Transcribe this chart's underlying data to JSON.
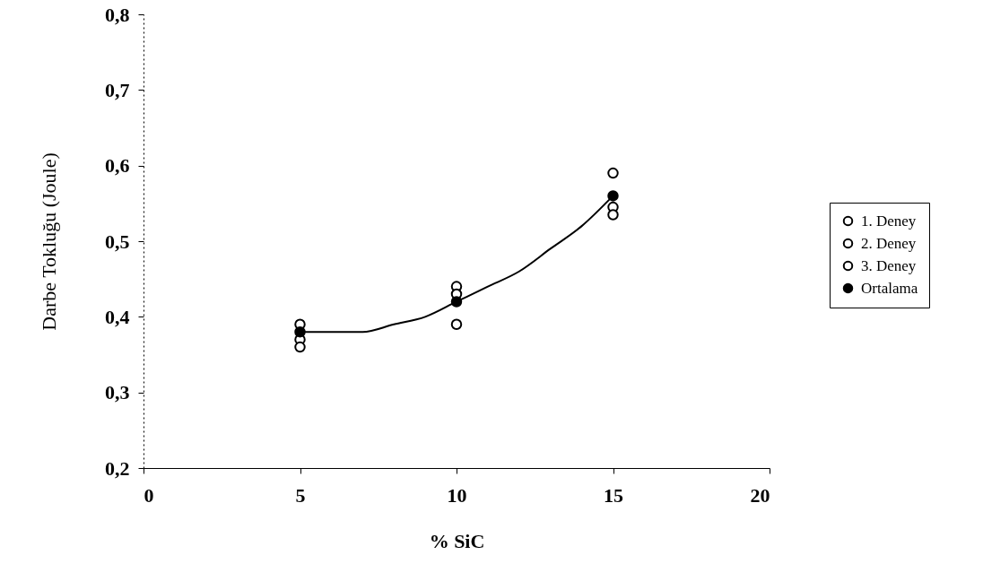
{
  "chart_data": {
    "type": "scatter",
    "xlabel": "% SiC",
    "ylabel": "Darbe Tokluğu  (Joule)",
    "xlim": [
      0,
      20
    ],
    "xticks": [
      0,
      5,
      10,
      15,
      20
    ],
    "ylim": [
      0.2,
      0.8
    ],
    "yticks": [
      {
        "value": 0.2,
        "label": "0,2"
      },
      {
        "value": 0.3,
        "label": "0,3"
      },
      {
        "value": 0.4,
        "label": "0,4"
      },
      {
        "value": 0.5,
        "label": "0,5"
      },
      {
        "value": 0.6,
        "label": "0,6"
      },
      {
        "value": 0.7,
        "label": "0,7"
      },
      {
        "value": 0.8,
        "label": "0,8"
      }
    ],
    "marker": "circle",
    "legend": "right",
    "grid": false,
    "series": [
      {
        "name": "1. Deney",
        "color": "#ffffff",
        "x": [
          5,
          10,
          15
        ],
        "values": [
          0.39,
          0.44,
          0.59
        ]
      },
      {
        "name": "2. Deney",
        "color": "#ffffff",
        "x": [
          5,
          10,
          15
        ],
        "values": [
          0.37,
          0.43,
          0.545
        ]
      },
      {
        "name": "3. Deney",
        "color": "#ffffff",
        "x": [
          5,
          10,
          15
        ],
        "values": [
          0.36,
          0.39,
          0.535
        ]
      },
      {
        "name": "Ortalama",
        "color": "#000000",
        "x": [
          5,
          10,
          15
        ],
        "values": [
          0.38,
          0.42,
          0.56
        ]
      },
      {
        "type": "line",
        "color": "#000000",
        "marker": "none",
        "x": [
          5,
          6,
          7,
          8,
          9,
          10,
          11,
          12,
          13,
          14,
          15
        ],
        "values": [
          0.38,
          0.38,
          0.38,
          0.39,
          0.4,
          0.42,
          0.44,
          0.46,
          0.49,
          0.52,
          0.56
        ]
      }
    ]
  }
}
